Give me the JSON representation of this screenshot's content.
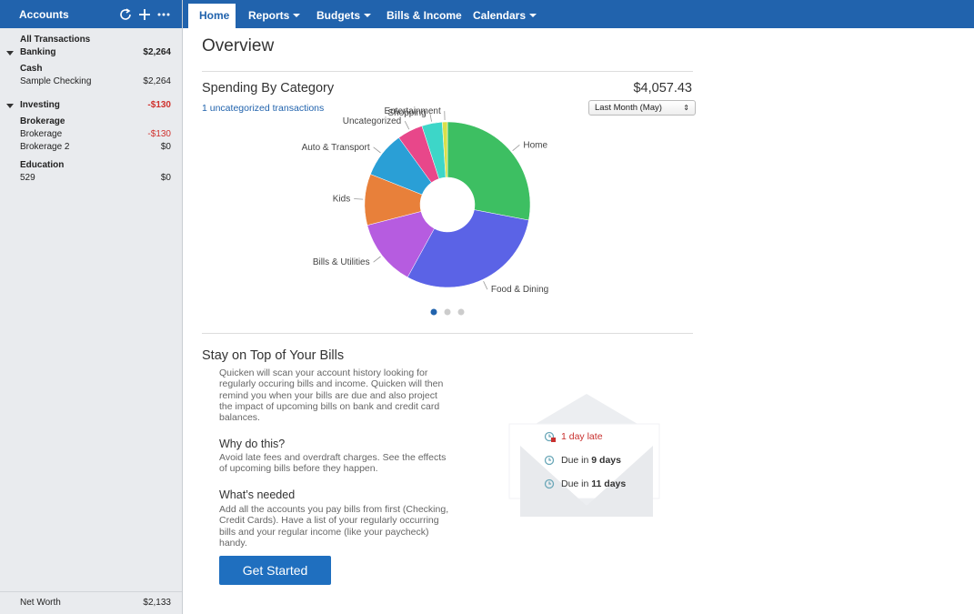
{
  "sidebar": {
    "header": "Accounts",
    "all_transactions": "All Transactions",
    "groups": [
      {
        "name": "Banking",
        "total": "$2,264",
        "sections": [
          {
            "name": "Cash",
            "accounts": [
              {
                "name": "Sample Checking",
                "amount": "$2,264"
              }
            ]
          }
        ]
      },
      {
        "name": "Investing",
        "total": "-$130",
        "sections": [
          {
            "name": "Brokerage",
            "accounts": [
              {
                "name": "Brokerage",
                "amount": "-$130"
              },
              {
                "name": "Brokerage 2",
                "amount": "$0"
              }
            ]
          },
          {
            "name": "Education",
            "accounts": [
              {
                "name": "529",
                "amount": "$0"
              }
            ]
          }
        ]
      }
    ],
    "footer": {
      "label": "Net Worth",
      "amount": "$2,133"
    }
  },
  "nav": {
    "items": [
      "Home",
      "Reports",
      "Budgets",
      "Bills & Income",
      "Calendars"
    ]
  },
  "overview": {
    "title": "Overview",
    "spending_title": "Spending By Category",
    "total": "$4,057.43",
    "uncategorized_link": "1 uncategorized transactions",
    "period": "Last Month (May)"
  },
  "chart_data": {
    "type": "pie",
    "categories": [
      "Home",
      "Food & Dining",
      "Bills & Utilities",
      "Kids",
      "Auto & Transport",
      "Uncategorized",
      "Shopping",
      "Entertainment"
    ],
    "values": [
      28,
      30,
      13,
      10,
      9,
      5,
      4,
      1
    ],
    "colors": [
      "#3dbf62",
      "#5b63e6",
      "#b65ce0",
      "#e8803a",
      "#2a9fd6",
      "#e8478a",
      "#3dd6c8",
      "#d9e04a"
    ]
  },
  "bills": {
    "title": "Stay on Top of Your Bills",
    "intro": "Quicken will scan your account history looking for regularly occuring bills and income. Quicken will then remind you when your bills are due and also project the impact of upcoming bills on bank and credit card balances.",
    "why_title": "Why do this?",
    "why_text": "Avoid late fees and overdraft charges. See the effects of upcoming bills before they happen.",
    "needed_title": "What’s needed",
    "needed_text": "Add all the accounts you pay bills from first (Checking, Credit Cards). Have a list of your regularly occurring bills and your regular income (like your paycheck) handy.",
    "button": "Get Started",
    "late": "1 day late",
    "due_items": [
      {
        "prefix": "Due in",
        "days": "9 days"
      },
      {
        "prefix": "Due in",
        "days": "11 days"
      }
    ]
  }
}
